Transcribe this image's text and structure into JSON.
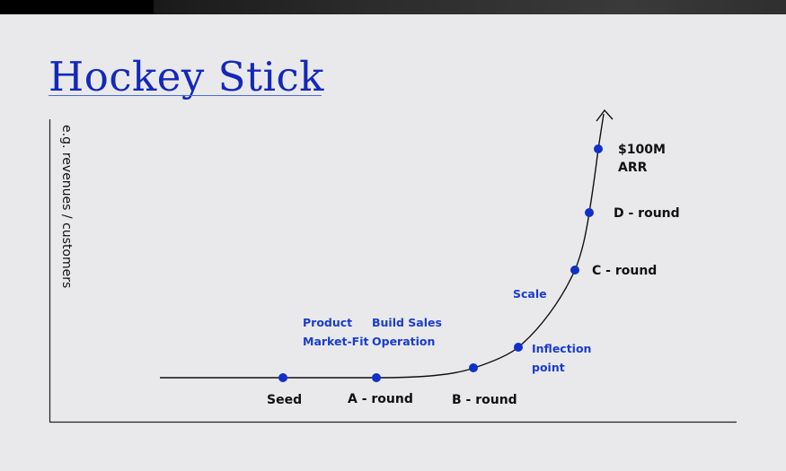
{
  "title": "Hockey Stick",
  "y_axis_label": "e.g. revenues / customers",
  "colors": {
    "accent": "#1428b8",
    "marker": "#1030c8",
    "curve": "#111111",
    "background": "#e9e9eb"
  },
  "milestones": [
    {
      "id": "seed",
      "label": "Seed"
    },
    {
      "id": "a-round",
      "label": "A - round"
    },
    {
      "id": "b-round",
      "label": "B - round"
    },
    {
      "id": "inflection",
      "label_line1": "Inflection",
      "label_line2": "point"
    },
    {
      "id": "c-round",
      "label": "C - round"
    },
    {
      "id": "d-round",
      "label": "D - round"
    },
    {
      "id": "arr",
      "label_line1": "$100M",
      "label_line2": "ARR"
    }
  ],
  "phases": {
    "product_market_fit": {
      "line1": "Product",
      "line2": "Market-Fit"
    },
    "build_sales": {
      "line1": "Build Sales",
      "line2": "Operation"
    },
    "scale": "Scale"
  }
}
